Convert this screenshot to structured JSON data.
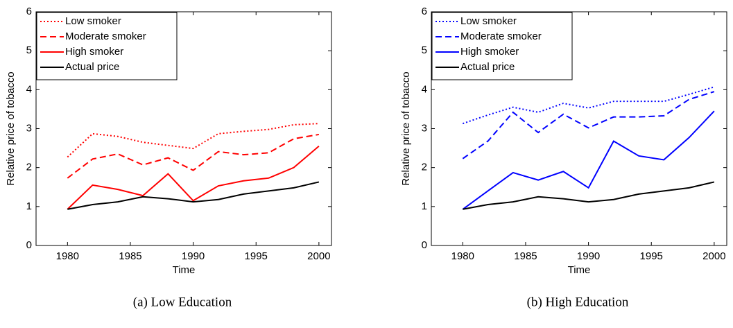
{
  "chart_data": [
    {
      "type": "line",
      "caption": "(a) Low Education",
      "xlabel": "Time",
      "ylabel": "Relative price of tobacco",
      "x": [
        1980,
        1982,
        1984,
        1986,
        1988,
        1990,
        1992,
        1994,
        1996,
        1998,
        2000
      ],
      "xlim": [
        1977.5,
        2001
      ],
      "xticks": [
        1980,
        1985,
        1990,
        1995,
        2000
      ],
      "ylim": [
        0,
        6
      ],
      "yticks": [
        0,
        1,
        2,
        3,
        4,
        5,
        6
      ],
      "legend": "upper left",
      "series": [
        {
          "name": "Low smoker",
          "color": "#ff0000",
          "style": "dotted",
          "values": [
            2.27,
            2.87,
            2.8,
            2.65,
            2.57,
            2.49,
            2.87,
            2.93,
            2.98,
            3.1,
            3.13
          ]
        },
        {
          "name": "Moderate smoker",
          "color": "#ff0000",
          "style": "dashed",
          "values": [
            1.73,
            2.22,
            2.35,
            2.07,
            2.25,
            1.93,
            2.41,
            2.33,
            2.38,
            2.74,
            2.85
          ]
        },
        {
          "name": "High smoker",
          "color": "#ff0000",
          "style": "solid",
          "values": [
            0.93,
            1.55,
            1.44,
            1.28,
            1.84,
            1.15,
            1.53,
            1.66,
            1.73,
            2.0,
            2.55
          ]
        },
        {
          "name": "Actual price",
          "color": "#000000",
          "style": "solid",
          "values": [
            0.93,
            1.05,
            1.12,
            1.25,
            1.2,
            1.12,
            1.18,
            1.32,
            1.4,
            1.48,
            1.63
          ]
        }
      ]
    },
    {
      "type": "line",
      "caption": "(b) High Education",
      "xlabel": "Time",
      "ylabel": "Relative price of tobacco",
      "x": [
        1980,
        1982,
        1984,
        1986,
        1988,
        1990,
        1992,
        1994,
        1996,
        1998,
        2000
      ],
      "xlim": [
        1977.5,
        2001
      ],
      "xticks": [
        1980,
        1985,
        1990,
        1995,
        2000
      ],
      "ylim": [
        0,
        6
      ],
      "yticks": [
        0,
        1,
        2,
        3,
        4,
        5,
        6
      ],
      "legend": "upper left",
      "series": [
        {
          "name": "Low smoker",
          "color": "#0000ff",
          "style": "dotted",
          "values": [
            3.13,
            3.35,
            3.55,
            3.42,
            3.65,
            3.53,
            3.7,
            3.7,
            3.7,
            3.88,
            4.07
          ]
        },
        {
          "name": "Moderate smoker",
          "color": "#0000ff",
          "style": "dashed",
          "values": [
            2.23,
            2.68,
            3.42,
            2.9,
            3.37,
            3.02,
            3.3,
            3.3,
            3.33,
            3.75,
            3.95
          ]
        },
        {
          "name": "High smoker",
          "color": "#0000ff",
          "style": "solid",
          "values": [
            0.93,
            1.4,
            1.87,
            1.68,
            1.9,
            1.48,
            2.68,
            2.3,
            2.2,
            2.77,
            3.45
          ]
        },
        {
          "name": "Actual price",
          "color": "#000000",
          "style": "solid",
          "values": [
            0.93,
            1.05,
            1.12,
            1.25,
            1.2,
            1.12,
            1.18,
            1.32,
            1.4,
            1.48,
            1.63
          ]
        }
      ]
    }
  ]
}
